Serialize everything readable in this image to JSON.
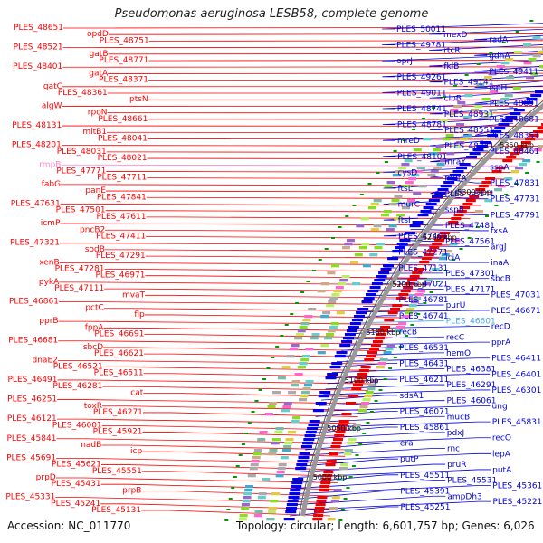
{
  "title": "Pseudomonas aeruginosa LESB58, complete genome",
  "footer": {
    "accession": "Accession: NC_011770",
    "summary": "Topology: circular; Length: 6,601,757 bp; Genes: 6,026"
  },
  "colors": {
    "left_label": "#ff0000",
    "right_label": "#0000dd",
    "highlight_left": "#ff88cc",
    "highlight_right": "#44aaee",
    "backbone": "#999999",
    "tick_mark": "#009900"
  },
  "kbp_marks": [
    "0 kbp",
    "5450 kbp",
    "5400 kbp",
    "5350 kbp",
    "5300 kbp",
    "5250 kbp",
    "5200 kbp",
    "5150 kbp",
    "5100 kbp",
    "5050 kbp",
    "5000 kbp"
  ],
  "left_labels": [
    "PLES_48651",
    "opdD",
    "PLES_48751",
    "PLES_48521",
    "gatB",
    "PLES_48771",
    "PLES_48401",
    "gatA",
    "PLES_48371",
    "gatC",
    "PLES_48361",
    "ptsN",
    "algW",
    "rpoN",
    "PLES_48661",
    "PLES_48131",
    "mltB1",
    "PLES_48041",
    "PLES_48201",
    "PLES_48031",
    "PLES_48021",
    "rmpB",
    "PLES_47771",
    "PLES_47711",
    "fabG",
    "panE",
    "PLES_47841",
    "PLES_47631",
    "PLES_47501",
    "PLES_47611",
    "icmP",
    "pncB2",
    "PLES_47411",
    "PLES_47321",
    "sodB",
    "PLES_47291",
    "xenB",
    "PLES_47281",
    "PLES_46971",
    "pykA",
    "PLES_47111",
    "mvaT",
    "PLES_46861",
    "pctC",
    "flp",
    "pprB",
    "fppA",
    "PLES_46691",
    "PLES_46681",
    "sbcD",
    "PLES_46621",
    "dnaE2",
    "PLES_46521",
    "PLES_46511",
    "PLES_46491",
    "PLES_46281",
    "cat",
    "PLES_46251",
    "toxR",
    "PLES_46271",
    "PLES_46121",
    "PLES_46001",
    "PLES_45921",
    "PLES_45841",
    "nadB",
    "icp",
    "PLES_45691",
    "PLES_45621",
    "PLES_45551",
    "prpD",
    "PLES_45431",
    "prpB",
    "PLES_45331",
    "PLES_45241",
    "PLES_45131"
  ],
  "right_labels": [
    "PLES_50011",
    "mexD",
    "radA",
    "PLES_49781",
    "rtcR",
    "gdhA",
    "oprJ",
    "fklB",
    "PLES_49411",
    "PLES_49261",
    "PLES_49141",
    "ispH",
    "PLES_49011",
    "clpB",
    "PLES_48891",
    "PLES_48741",
    "PLES_48931",
    "PLES_48681",
    "PLES_48781",
    "PLES_48551",
    "PLES_48351",
    "mreD",
    "PLES_48241",
    "PLES_48461",
    "PLES_48101",
    "mraY",
    "sspA",
    "cysD",
    "murA",
    "PLES_47831",
    "ftsL",
    "PLES_48141",
    "PLES_47731",
    "murC",
    "sspB",
    "PLES_47791",
    "ftsI",
    "PLES_47481",
    "fxsA",
    "PLES_47401",
    "PLES_47561",
    "argJ",
    "PLES_47271",
    "iciA",
    "inaA",
    "PLES_47131",
    "PLES_47301",
    "sbcB",
    "PLES_47021",
    "PLES_47171",
    "PLES_47031",
    "PLES_46781",
    "purU",
    "PLES_46671",
    "PLES_46741",
    "PLES_46601",
    "recD",
    "recB",
    "recC",
    "pprA",
    "PLES_46531",
    "hemO",
    "PLES_46411",
    "PLES_46431",
    "PLES_46381",
    "PLES_46401",
    "PLES_46211",
    "PLES_46291",
    "PLES_46301",
    "sdsA1",
    "PLES_46061",
    "ung",
    "PLES_46071",
    "mucB",
    "PLES_45831",
    "PLES_45861",
    "pdxJ",
    "recO",
    "era",
    "rnc",
    "lepA",
    "putP",
    "pruR",
    "putA",
    "PLES_45511",
    "PLES_45531",
    "PLES_45361",
    "PLES_45391",
    "ampDh3",
    "PLES_45221",
    "PLES_45251"
  ]
}
